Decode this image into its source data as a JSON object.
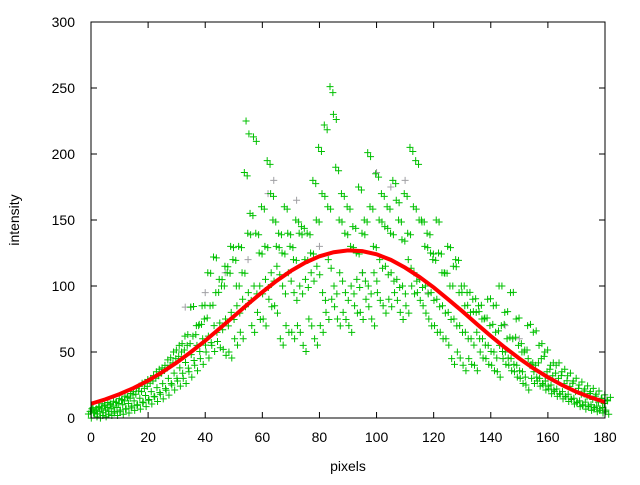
{
  "chart_data": {
    "type": "scatter",
    "title": "",
    "xlabel": "pixels",
    "ylabel": "intensity",
    "xlim": [
      0,
      180
    ],
    "ylim": [
      0,
      300
    ],
    "xticks": [
      "0",
      "20",
      "40",
      "60",
      "80",
      "100",
      "120",
      "140",
      "160",
      "180"
    ],
    "yticks": [
      "0",
      "50",
      "100",
      "150",
      "200",
      "250",
      "300"
    ],
    "grid": false,
    "legend": "none",
    "colors": {
      "primary": "#00c000",
      "secondary": "#a0a0a4",
      "fit": "#ff0000"
    },
    "series": [
      {
        "marker": "plus",
        "color": "#a0a0a4",
        "points": [
          [
            33,
            84
          ],
          [
            35,
            84
          ],
          [
            40,
            95
          ],
          [
            47,
            110
          ],
          [
            55,
            120
          ],
          [
            62,
            170
          ],
          [
            64,
            180
          ],
          [
            72,
            165
          ],
          [
            80,
            130
          ],
          [
            95,
            110
          ],
          [
            100,
            186
          ],
          [
            105,
            175
          ],
          [
            110,
            180
          ],
          [
            118,
            95
          ],
          [
            145,
            70
          ],
          [
            150,
            60
          ],
          [
            160,
            30
          ]
        ]
      },
      {
        "marker": "plus",
        "color": "#00c000",
        "x": [
          0,
          2,
          4,
          6,
          8,
          10,
          12,
          14,
          16,
          18,
          20,
          22,
          24,
          26,
          28,
          30,
          32,
          34,
          36,
          38,
          40,
          42,
          44,
          46,
          48,
          50,
          52,
          54,
          56,
          58,
          60,
          62,
          64,
          66,
          68,
          70,
          72,
          74,
          76,
          78,
          80,
          82,
          84,
          86,
          88,
          90,
          92,
          94,
          96,
          98,
          100,
          102,
          104,
          106,
          108,
          110,
          112,
          114,
          116,
          118,
          120,
          122,
          124,
          126,
          128,
          130,
          132,
          134,
          136,
          138,
          140,
          142,
          144,
          146,
          148,
          150,
          152,
          154,
          156,
          158,
          160,
          162,
          164,
          166,
          168,
          170,
          172,
          174,
          176,
          178,
          180
        ],
        "y": [
          [
            3,
            5,
            7,
            4
          ],
          [
            4,
            6,
            3,
            8
          ],
          [
            5,
            7,
            4,
            9
          ],
          [
            6,
            8,
            5,
            10
          ],
          [
            7,
            9,
            5,
            12
          ],
          [
            8,
            11,
            6,
            14
          ],
          [
            10,
            13,
            7,
            16
          ],
          [
            11,
            15,
            9,
            20
          ],
          [
            13,
            18,
            10,
            24
          ],
          [
            15,
            20,
            12,
            27
          ],
          [
            17,
            24,
            14,
            30
          ],
          [
            20,
            28,
            16,
            35
          ],
          [
            23,
            32,
            18,
            38
          ],
          [
            26,
            36,
            21,
            44
          ],
          [
            30,
            40,
            25,
            50
          ],
          [
            34,
            45,
            28,
            55
          ],
          [
            38,
            50,
            30,
            62
          ],
          [
            42,
            55,
            35,
            84
          ],
          [
            48,
            62,
            40,
            70
          ],
          [
            55,
            70,
            45,
            85
          ],
          [
            60,
            75,
            50,
            110
          ],
          [
            62,
            85,
            55,
            122
          ],
          [
            70,
            95,
            58,
            105
          ],
          [
            72,
            100,
            52,
            115
          ],
          [
            75,
            110,
            50,
            130
          ],
          [
            80,
            120,
            60,
            100
          ],
          [
            85,
            130,
            65,
            110
          ],
          [
            90,
            186,
            225,
            140
          ],
          [
            95,
            155,
            70,
            213
          ],
          [
            100,
            140,
            80,
            125
          ],
          [
            100,
            160,
            75,
            130
          ],
          [
            105,
            195,
            90,
            170
          ],
          [
            110,
            150,
            85,
            130
          ],
          [
            115,
            140,
            60,
            125
          ],
          [
            100,
            160,
            70,
            140
          ],
          [
            110,
            130,
            65,
            120
          ],
          [
            95,
            150,
            70,
            140
          ],
          [
            100,
            145,
            55,
            120
          ],
          [
            105,
            140,
            75,
            125
          ],
          [
            110,
            180,
            60,
            150
          ],
          [
            115,
            205,
            70,
            170
          ],
          [
            95,
            222,
            80,
            160
          ],
          [
            120,
            251,
            90,
            230
          ],
          [
            100,
            190,
            75,
            150
          ],
          [
            110,
            170,
            80,
            140
          ],
          [
            95,
            160,
            70,
            130
          ],
          [
            100,
            145,
            85,
            125
          ],
          [
            105,
            175,
            80,
            140
          ],
          [
            110,
            150,
            90,
            201
          ],
          [
            100,
            160,
            75,
            130
          ],
          [
            110,
            185,
            95,
            150
          ],
          [
            120,
            170,
            85,
            145
          ],
          [
            115,
            160,
            90,
            140
          ],
          [
            110,
            180,
            95,
            165
          ],
          [
            105,
            150,
            80,
            135
          ],
          [
            100,
            170,
            85,
            140
          ],
          [
            120,
            205,
            100,
            160
          ],
          [
            110,
            195,
            95,
            150
          ],
          [
            105,
            150,
            85,
            130
          ],
          [
            100,
            140,
            75,
            125
          ],
          [
            95,
            120,
            70,
            150
          ],
          [
            90,
            125,
            65,
            110
          ],
          [
            85,
            110,
            60,
            130
          ],
          [
            80,
            100,
            45,
            115
          ],
          [
            75,
            120,
            50,
            95
          ],
          [
            70,
            100,
            40,
            85
          ],
          [
            65,
            95,
            45,
            80
          ],
          [
            60,
            90,
            40,
            80
          ],
          [
            65,
            85,
            50,
            75
          ],
          [
            60,
            75,
            45,
            90
          ],
          [
            55,
            70,
            40,
            85
          ],
          [
            50,
            65,
            35,
            100
          ],
          [
            55,
            70,
            45,
            80
          ],
          [
            50,
            60,
            40,
            95
          ],
          [
            45,
            60,
            35,
            75
          ],
          [
            40,
            55,
            30,
            50
          ],
          [
            35,
            50,
            25,
            70
          ],
          [
            45,
            40,
            30,
            65
          ],
          [
            35,
            40,
            28,
            55
          ],
          [
            30,
            45,
            25,
            50
          ],
          [
            28,
            35,
            22,
            40
          ],
          [
            25,
            32,
            20,
            40
          ],
          [
            22,
            30,
            18,
            35
          ],
          [
            20,
            26,
            16,
            32
          ],
          [
            18,
            24,
            14,
            28
          ],
          [
            15,
            20,
            12,
            25
          ],
          [
            13,
            18,
            10,
            22
          ],
          [
            12,
            16,
            9,
            20
          ],
          [
            10,
            14,
            8,
            18
          ],
          [
            9,
            12,
            7,
            15
          ],
          [
            8,
            11,
            6,
            13
          ]
        ]
      },
      {
        "marker": "line",
        "color": "#ff0000",
        "x": [
          0,
          5,
          10,
          15,
          20,
          25,
          30,
          35,
          40,
          45,
          50,
          55,
          60,
          65,
          70,
          75,
          80,
          85,
          90,
          95,
          100,
          105,
          110,
          115,
          120,
          125,
          130,
          135,
          140,
          145,
          150,
          155,
          160,
          165,
          170,
          175,
          180
        ],
        "y": [
          10.8,
          14.1,
          18.1,
          22.8,
          28.3,
          34.8,
          42.0,
          50.0,
          58.6,
          67.7,
          77.0,
          86.4,
          95.4,
          103.9,
          111.4,
          117.7,
          122.5,
          125.6,
          127.0,
          126.4,
          124.0,
          119.8,
          113.9,
          106.9,
          98.9,
          90.0,
          80.9,
          71.4,
          62.1,
          53.3,
          45.1,
          37.5,
          30.9,
          24.9,
          19.8,
          15.6,
          12.0
        ]
      }
    ]
  }
}
